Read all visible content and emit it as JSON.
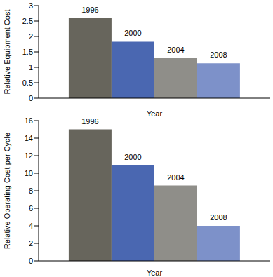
{
  "chart_data": [
    {
      "type": "bar",
      "x_label": "Year",
      "y_label": "Relative Equipment Cost",
      "categories": [
        "1996",
        "2000",
        "2004",
        "2008"
      ],
      "values": [
        2.6,
        1.83,
        1.3,
        1.13
      ],
      "colors": [
        "#67655c",
        "#4a67b1",
        "#8f8e89",
        "#7d91c9"
      ],
      "ylim": [
        0,
        3
      ],
      "yticks": [
        0,
        0.5,
        1,
        1.5,
        2,
        2.5,
        3
      ],
      "grid": false,
      "tick_labels": "y"
    },
    {
      "type": "bar",
      "x_label": "Year",
      "y_label": "Relative Operating Cost per Cycle",
      "categories": [
        "1996",
        "2000",
        "2004",
        "2008"
      ],
      "values": [
        15,
        10.9,
        8.6,
        4
      ],
      "colors": [
        "#67655c",
        "#4a67b1",
        "#8f8e89",
        "#7d91c9"
      ],
      "ylim": [
        0,
        16
      ],
      "yticks": [
        0,
        2,
        4,
        6,
        8,
        10,
        12,
        14,
        16
      ],
      "grid": false,
      "tick_labels": "y"
    }
  ]
}
